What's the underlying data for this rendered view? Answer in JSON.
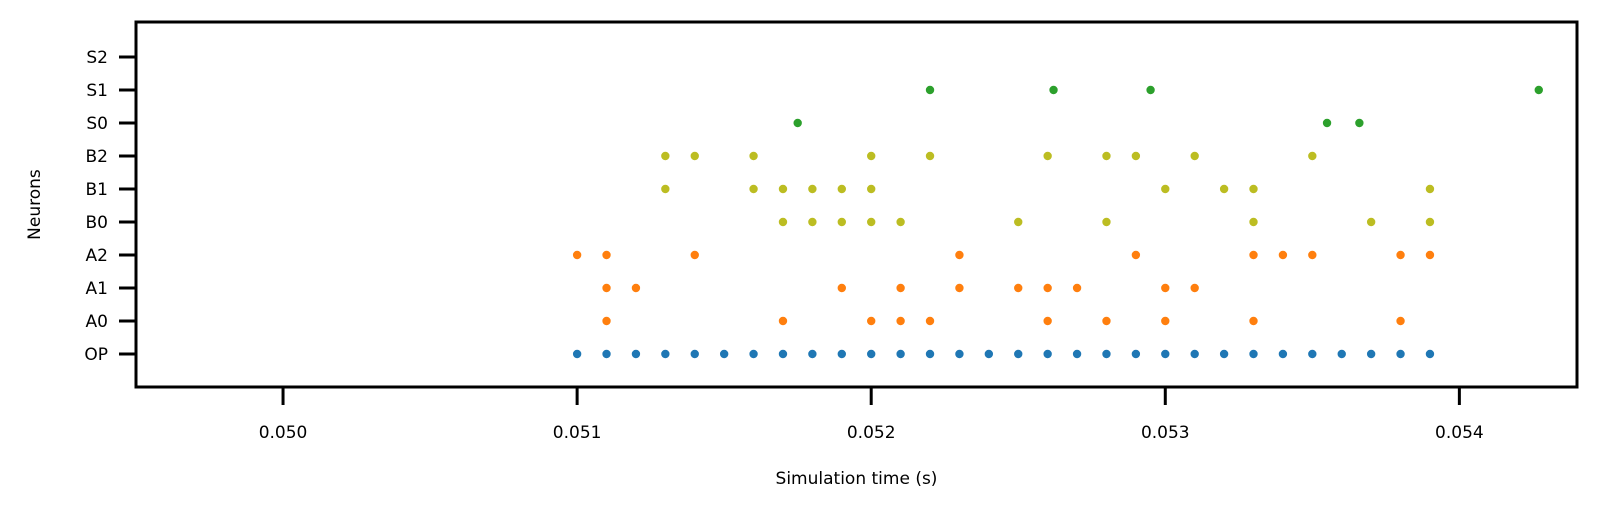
{
  "chart_data": {
    "type": "scatter",
    "title": "",
    "xlabel": "Simulation time (s)",
    "ylabel": "Neurons",
    "xlim": [
      0.0495,
      0.0544
    ],
    "x_ticks": [
      0.05,
      0.051,
      0.052,
      0.053,
      0.054
    ],
    "x_tick_labels": [
      "0.050",
      "0.051",
      "0.052",
      "0.053",
      "0.054"
    ],
    "categories": [
      "OP",
      "A0",
      "A1",
      "A2",
      "B0",
      "B1",
      "B2",
      "S0",
      "S1",
      "S2"
    ],
    "grid": false,
    "legend": "none",
    "series": [
      {
        "color": "#1f77b4",
        "points": [
          {
            "neuron": "OP",
            "x": [
              0.051,
              0.0511,
              0.0512,
              0.0513,
              0.0514,
              0.0515,
              0.0516,
              0.0517,
              0.0518,
              0.0519,
              0.052,
              0.0521,
              0.0522,
              0.0523,
              0.0524,
              0.0525,
              0.0526,
              0.0527,
              0.0528,
              0.0529,
              0.053,
              0.0531,
              0.0532,
              0.0533,
              0.0534,
              0.0535,
              0.0536,
              0.0537,
              0.0538,
              0.0539
            ]
          }
        ]
      },
      {
        "color": "#ff7f0e",
        "points": [
          {
            "neuron": "A0",
            "x": [
              0.0511,
              0.0517,
              0.052,
              0.0521,
              0.0522,
              0.0526,
              0.0528,
              0.053,
              0.0533,
              0.0538
            ]
          },
          {
            "neuron": "A1",
            "x": [
              0.0511,
              0.0512,
              0.0519,
              0.0521,
              0.0523,
              0.0525,
              0.0526,
              0.0527,
              0.053,
              0.0531
            ]
          },
          {
            "neuron": "A2",
            "x": [
              0.051,
              0.0511,
              0.0514,
              0.0523,
              0.0529,
              0.0533,
              0.0534,
              0.0535,
              0.0538,
              0.0539
            ]
          }
        ]
      },
      {
        "color": "#bcbd22",
        "points": [
          {
            "neuron": "B0",
            "x": [
              0.0517,
              0.0518,
              0.0519,
              0.052,
              0.0521,
              0.0525,
              0.0528,
              0.0533,
              0.0537,
              0.0539
            ]
          },
          {
            "neuron": "B1",
            "x": [
              0.0513,
              0.0516,
              0.0517,
              0.0518,
              0.0519,
              0.052,
              0.053,
              0.0532,
              0.0533,
              0.0539
            ]
          },
          {
            "neuron": "B2",
            "x": [
              0.0513,
              0.0514,
              0.0516,
              0.052,
              0.0522,
              0.0526,
              0.0528,
              0.0529,
              0.0531,
              0.0535
            ]
          }
        ]
      },
      {
        "color": "#2ca02c",
        "points": [
          {
            "neuron": "S0",
            "x": [
              0.05175,
              0.05355,
              0.05366
            ]
          },
          {
            "neuron": "S1",
            "x": [
              0.0522,
              0.05262,
              0.05295,
              0.05427
            ]
          }
        ]
      }
    ]
  }
}
